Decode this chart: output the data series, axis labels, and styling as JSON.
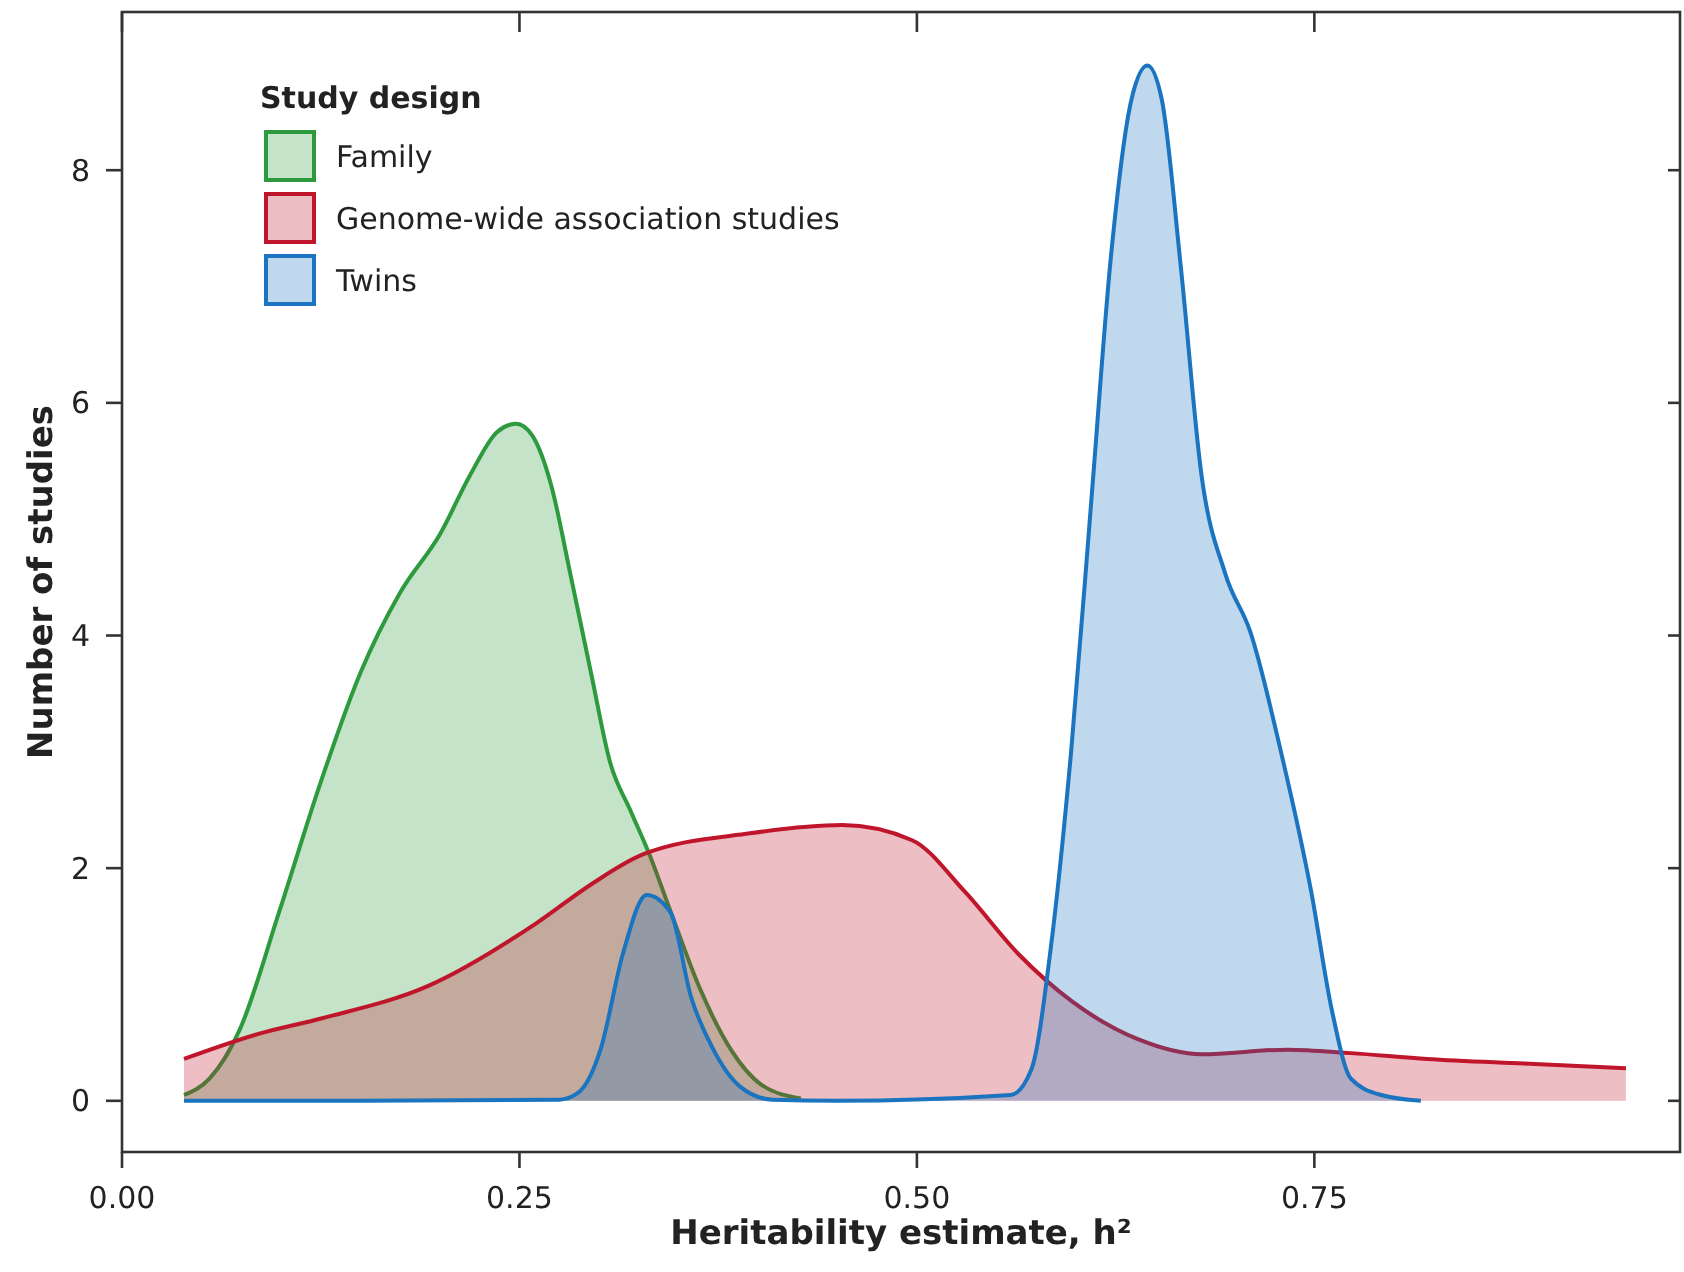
{
  "chart_data": {
    "type": "area",
    "xlabel": "Heritability estimate, h²",
    "ylabel": "Number of studies",
    "legend_title": "Study design",
    "legend": "top left",
    "xlim": [
      0,
      0.98
    ],
    "ylim": [
      -0.44,
      9.36
    ],
    "xticks": [
      {
        "value": 0,
        "label": "0.00"
      },
      {
        "value": 0.25,
        "label": "0.25"
      },
      {
        "value": 0.5,
        "label": "0.50"
      },
      {
        "value": 0.75,
        "label": "0.75"
      }
    ],
    "yticks": [
      0,
      2,
      4,
      6,
      8
    ],
    "grid": false,
    "series": [
      {
        "name": "Family",
        "color": "#2e9a3e",
        "x": [
          0.039,
          0.055,
          0.074,
          0.099,
          0.125,
          0.15,
          0.175,
          0.2,
          0.219,
          0.236,
          0.248,
          0.258,
          0.27,
          0.282,
          0.295,
          0.307,
          0.32,
          0.332,
          0.345,
          0.364,
          0.383,
          0.402,
          0.427
        ],
        "values": [
          0.05,
          0.19,
          0.61,
          1.63,
          2.74,
          3.68,
          4.37,
          4.87,
          5.38,
          5.75,
          5.82,
          5.72,
          5.29,
          4.53,
          3.68,
          2.91,
          2.49,
          2.11,
          1.63,
          0.95,
          0.44,
          0.14,
          0.02
        ]
      },
      {
        "name": "Genome-wide association studies",
        "color": "#c0162b",
        "x": [
          0.039,
          0.087,
          0.126,
          0.193,
          0.261,
          0.295,
          0.328,
          0.395,
          0.453,
          0.497,
          0.53,
          0.564,
          0.598,
          0.639,
          0.679,
          0.733,
          0.773,
          0.821,
          0.882,
          0.946
        ],
        "values": [
          0.36,
          0.58,
          0.71,
          0.99,
          1.53,
          1.86,
          2.12,
          2.3,
          2.37,
          2.24,
          1.8,
          1.26,
          0.85,
          0.53,
          0.4,
          0.44,
          0.41,
          0.36,
          0.32,
          0.28
        ]
      },
      {
        "name": "Twins",
        "color": "#1a74bf",
        "x": [
          0.039,
          0.15,
          0.275,
          0.287,
          0.301,
          0.315,
          0.33,
          0.345,
          0.358,
          0.372,
          0.389,
          0.409,
          0.45,
          0.559,
          0.572,
          0.584,
          0.597,
          0.61,
          0.622,
          0.635,
          0.645,
          0.654,
          0.666,
          0.679,
          0.694,
          0.71,
          0.729,
          0.748,
          0.761,
          0.773,
          0.792,
          0.817
        ],
        "values": [
          0,
          0,
          0.01,
          0.07,
          0.44,
          1.26,
          1.77,
          1.62,
          0.89,
          0.44,
          0.12,
          0.01,
          0,
          0.05,
          0.27,
          1.29,
          3.0,
          5.21,
          7.25,
          8.61,
          8.9,
          8.61,
          7.17,
          5.38,
          4.53,
          4.02,
          3.0,
          1.8,
          0.78,
          0.19,
          0.05,
          0
        ]
      }
    ]
  }
}
